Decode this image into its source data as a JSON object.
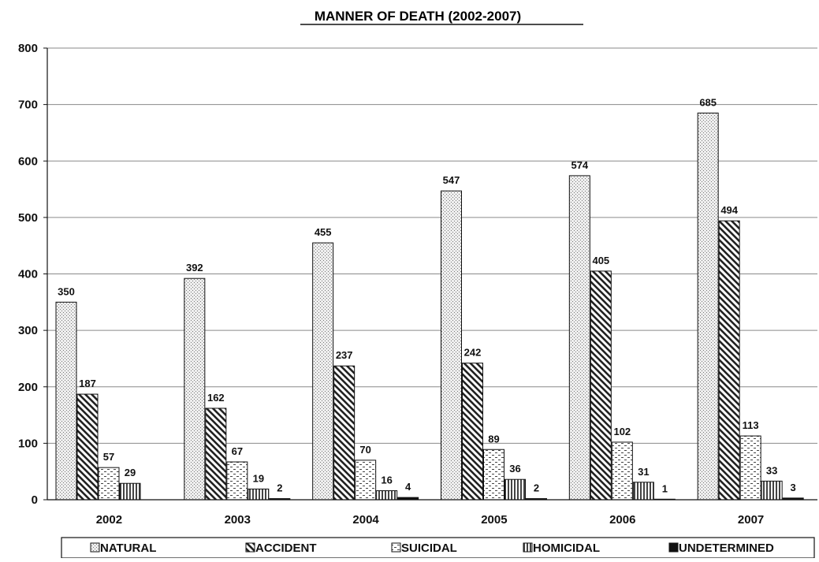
{
  "chart_data": {
    "type": "bar",
    "title": "MANNER OF DEATH (2002-2007)",
    "xlabel": "",
    "ylabel": "",
    "ylim": [
      0,
      800
    ],
    "yticks": [
      0,
      100,
      200,
      300,
      400,
      500,
      600,
      700,
      800
    ],
    "grid": true,
    "legend_placement": "bottom",
    "categories": [
      "2002",
      "2003",
      "2004",
      "2005",
      "2006",
      "2007"
    ],
    "series": [
      {
        "name": "NATURAL",
        "pattern": "dots-light",
        "values": [
          350,
          392,
          455,
          547,
          574,
          685
        ],
        "labels": [
          "350",
          "392",
          "455",
          "547",
          "574",
          "685"
        ]
      },
      {
        "name": "ACCIDENT",
        "pattern": "diagonal-stripes",
        "values": [
          187,
          162,
          237,
          242,
          405,
          494
        ],
        "labels": [
          "187",
          "162",
          "237",
          "242",
          "405",
          "494"
        ]
      },
      {
        "name": "SUICIDAL",
        "pattern": "dashed-horizontal",
        "values": [
          57,
          67,
          70,
          89,
          102,
          113
        ],
        "labels": [
          "57",
          "67",
          "70",
          "89",
          "102",
          "113"
        ]
      },
      {
        "name": "HOMICIDAL",
        "pattern": "vertical-stripes",
        "values": [
          29,
          19,
          16,
          36,
          31,
          33
        ],
        "labels": [
          "29",
          "19",
          "16",
          "36",
          "31",
          "33"
        ]
      },
      {
        "name": "UNDETERMINED",
        "pattern": "solid-black",
        "values": [
          0,
          2,
          4,
          2,
          1,
          3
        ],
        "labels": [
          "",
          "2",
          "4",
          "2",
          "1",
          "3"
        ]
      }
    ]
  }
}
